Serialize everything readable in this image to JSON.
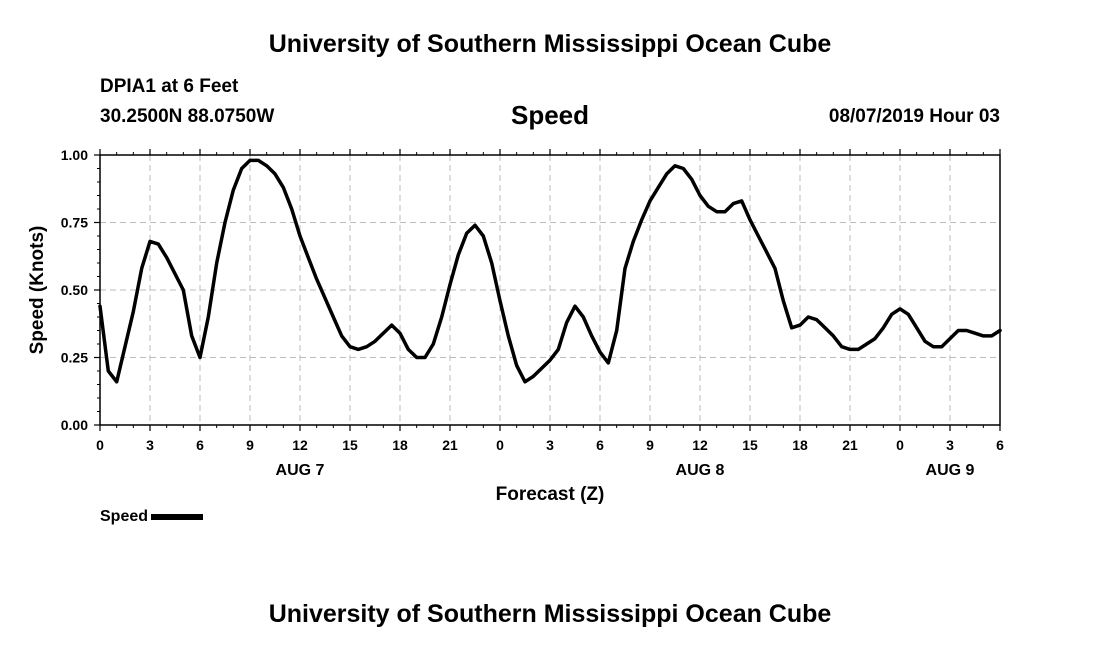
{
  "header": {
    "title": "University of Southern Mississippi Ocean Cube",
    "station": "DPIA1 at 6 Feet",
    "coords": "30.2500N 88.0750W",
    "chart_title": "Speed",
    "datetime": "08/07/2019 Hour 03"
  },
  "footer": {
    "title": "University of Southern Mississippi Ocean Cube"
  },
  "legend": {
    "label": "Speed"
  },
  "chart_data": {
    "type": "line",
    "title": "Speed",
    "xlabel": "Forecast (Z)",
    "ylabel": "Speed (Knots)",
    "xlim": [
      0,
      54
    ],
    "ylim": [
      0,
      1.0
    ],
    "grid": true,
    "legend_position": "bottom-left",
    "y_ticks": [
      "0.00",
      "0.25",
      "0.50",
      "0.75",
      "1.00"
    ],
    "y_tick_values": [
      0,
      0.25,
      0.5,
      0.75,
      1.0
    ],
    "x_ticks": [
      "0",
      "3",
      "6",
      "9",
      "12",
      "15",
      "18",
      "21",
      "0",
      "3",
      "6",
      "9",
      "12",
      "15",
      "18",
      "21",
      "0",
      "3",
      "6"
    ],
    "date_labels": [
      {
        "label": "AUG 7",
        "hour": 12
      },
      {
        "label": "AUG 8",
        "hour": 36
      },
      {
        "label": "AUG 9",
        "hour": 51
      }
    ],
    "series": [
      {
        "name": "Speed",
        "color": "#000000",
        "x": [
          0,
          0.5,
          1,
          2,
          2.5,
          3,
          3.5,
          4,
          5,
          5.5,
          6,
          6.5,
          7,
          7.5,
          8,
          8.5,
          9,
          9.5,
          10,
          10.5,
          11,
          11.5,
          12,
          12.5,
          13,
          13.5,
          14,
          14.5,
          15,
          15.5,
          16,
          16.5,
          17,
          17.5,
          18,
          18.5,
          19,
          19.5,
          20,
          20.5,
          21,
          21.5,
          22,
          22.5,
          23,
          23.5,
          24,
          24.5,
          25,
          25.5,
          26,
          26.5,
          27,
          27.5,
          28,
          28.5,
          29,
          29.5,
          30,
          30.5,
          31,
          31.5,
          32,
          32.5,
          33,
          33.5,
          34,
          34.5,
          35,
          35.5,
          36,
          36.5,
          37,
          37.5,
          38,
          38.5,
          39,
          39.5,
          40,
          40.5,
          41,
          41.5,
          42,
          42.5,
          43,
          43.5,
          44,
          44.5,
          45,
          45.5,
          46,
          46.5,
          47,
          47.5,
          48,
          48.5,
          49,
          49.5,
          50,
          50.5,
          51,
          51.5,
          52,
          52.5,
          53,
          53.5,
          54
        ],
        "values": [
          0.44,
          0.2,
          0.16,
          0.42,
          0.58,
          0.68,
          0.67,
          0.62,
          0.5,
          0.33,
          0.25,
          0.4,
          0.6,
          0.75,
          0.87,
          0.95,
          0.98,
          0.98,
          0.96,
          0.93,
          0.88,
          0.8,
          0.7,
          0.62,
          0.54,
          0.47,
          0.4,
          0.33,
          0.29,
          0.28,
          0.29,
          0.31,
          0.34,
          0.37,
          0.34,
          0.28,
          0.25,
          0.25,
          0.3,
          0.4,
          0.52,
          0.63,
          0.71,
          0.74,
          0.7,
          0.6,
          0.46,
          0.33,
          0.22,
          0.16,
          0.18,
          0.21,
          0.24,
          0.28,
          0.38,
          0.44,
          0.4,
          0.33,
          0.27,
          0.23,
          0.35,
          0.58,
          0.68,
          0.76,
          0.83,
          0.88,
          0.93,
          0.96,
          0.95,
          0.91,
          0.85,
          0.81,
          0.79,
          0.79,
          0.82,
          0.83,
          0.76,
          0.7,
          0.64,
          0.58,
          0.46,
          0.36,
          0.37,
          0.4,
          0.39,
          0.36,
          0.33,
          0.29,
          0.28,
          0.28,
          0.3,
          0.32,
          0.36,
          0.41,
          0.43,
          0.41,
          0.36,
          0.31,
          0.29,
          0.29,
          0.32,
          0.35,
          0.35,
          0.34,
          0.33,
          0.33,
          0.35
        ]
      }
    ]
  }
}
